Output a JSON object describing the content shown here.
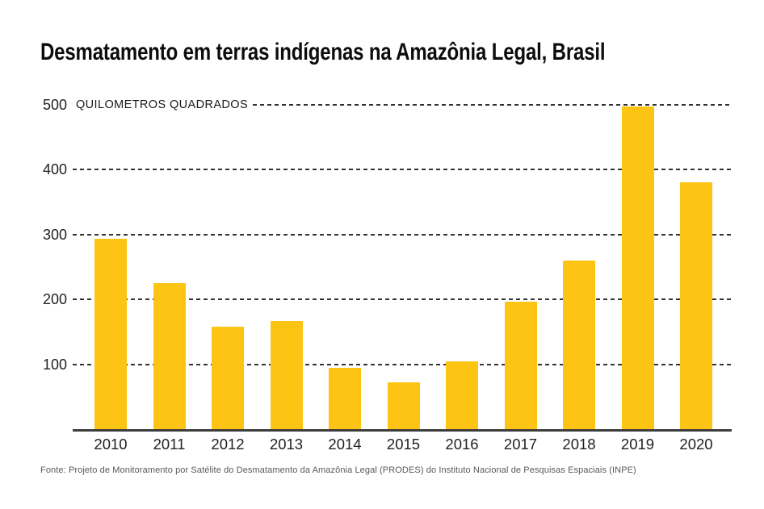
{
  "chart_data": {
    "type": "bar",
    "title": "Desmatamento em terras indígenas na Amazônia Legal, Brasil",
    "unit_label": "QUILOMETROS QUADRADOS",
    "categories": [
      "2010",
      "2011",
      "2012",
      "2013",
      "2014",
      "2015",
      "2016",
      "2017",
      "2018",
      "2019",
      "2020"
    ],
    "values": [
      293,
      225,
      158,
      167,
      95,
      72,
      105,
      197,
      260,
      497,
      380
    ],
    "ylim": [
      0,
      500
    ],
    "yticks": [
      100,
      200,
      300,
      400,
      500
    ],
    "grid": "dashed-horizontal",
    "legend": "none",
    "bar_color": "#FDC413",
    "source": "Fonte: Projeto de Monitoramento por Satélite do Desmatamento da Amazônia Legal (PRODES) do Instituto Nacional de Pesquisas Espaciais (INPE)"
  }
}
